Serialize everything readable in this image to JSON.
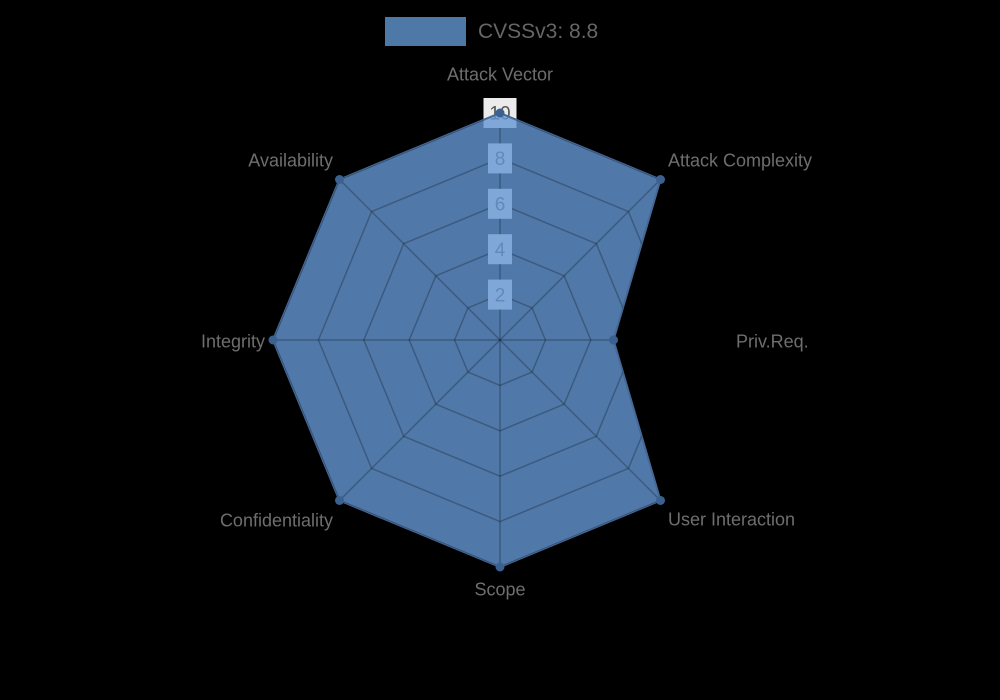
{
  "page": {
    "background_color": "#000000"
  },
  "legend": {
    "label": "CVSSv3: 8.8",
    "swatch_color": "#4e78a8",
    "text_color": "#666666",
    "position": "top"
  },
  "chart_data": {
    "type": "radar",
    "title": "CVSSv3: 8.8",
    "categories": [
      "Attack Vector",
      "Attack Complexity",
      "Priv.Req.",
      "User Interaction",
      "Scope",
      "Confidentiality",
      "Integrity",
      "Availability"
    ],
    "series": [
      {
        "name": "CVSSv3: 8.8",
        "values": [
          10,
          10,
          5,
          10,
          10,
          10,
          10,
          10
        ]
      }
    ],
    "ticks": [
      2,
      4,
      6,
      8,
      10
    ],
    "rmin": 0,
    "rmax": 10,
    "grid": true,
    "legend_position": "top",
    "colors": {
      "fill": "rgba(100,150,211,0.8)",
      "fill_over_background": "#4e78a8",
      "border": "#466996",
      "point": "#3b6190",
      "grid_line": "rgba(0,0,0,0.25)",
      "tick_backdrop": "rgba(255,255,255,0.92)",
      "tick_text": "#555555",
      "axis_label_text": "#6e6e6e"
    }
  }
}
